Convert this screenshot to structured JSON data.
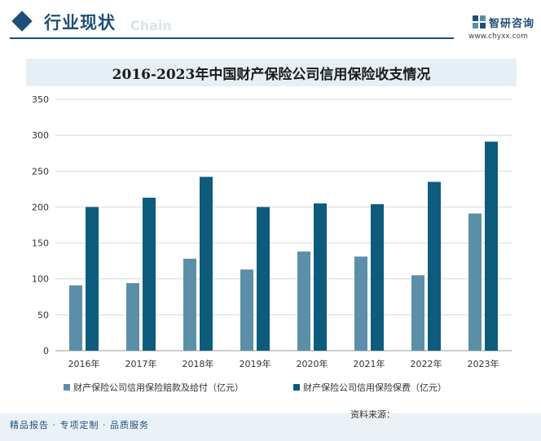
{
  "header": {
    "section_title": "行业现状",
    "section_sub": "Chain",
    "brand_name": "智研咨询",
    "brand_url": "www.chyxx.com",
    "brand_color": "#1f4e79"
  },
  "footer": {
    "tagline": "精品报告 · 专项定制 · 品质服务",
    "source": "资料来源："
  },
  "chart_data": {
    "type": "bar",
    "title": "2016-2023年中国财产保险公司信用保险收支情况",
    "xlabel": "",
    "ylabel": "",
    "categories": [
      "2016年",
      "2017年",
      "2018年",
      "2019年",
      "2020年",
      "2021年",
      "2022年",
      "2023年"
    ],
    "ylim": [
      0,
      350
    ],
    "yticks": [
      "350",
      "300",
      "250",
      "200",
      "150",
      "100",
      "50",
      "0"
    ],
    "grid": true,
    "legend_position": "bottom",
    "series": [
      {
        "name": "财产保险公司信用保险赔款及给付（亿元）",
        "color": "#5b8fa8",
        "values": [
          91,
          94,
          128,
          113,
          138,
          131,
          105,
          191
        ]
      },
      {
        "name": "财产保险公司信用保险保费（亿元）",
        "color": "#0d5c7d",
        "values": [
          200,
          213,
          242,
          200,
          205,
          204,
          235,
          291
        ]
      }
    ]
  }
}
